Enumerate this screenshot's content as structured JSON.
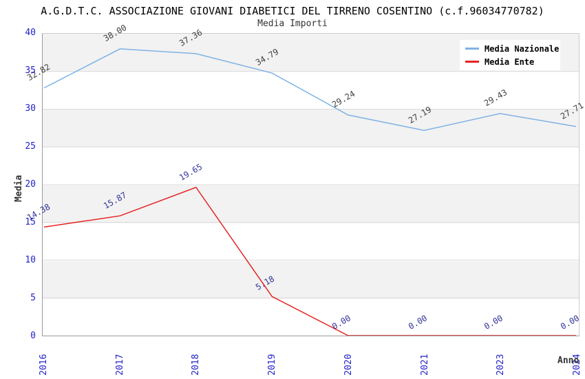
{
  "title": "A.G.D.T.C. ASSOCIAZIONE GIOVANI DIABETICI DEL TIRRENO COSENTINO (c.f.96034770782)",
  "subtitle": "Media Importi",
  "y_axis": {
    "label": "Media",
    "ticks": [
      "40",
      "35",
      "30",
      "25",
      "20",
      "15",
      "10",
      "5",
      "0"
    ]
  },
  "x_axis": {
    "label": "Anno",
    "ticks": [
      "2016",
      "2017",
      "2018",
      "2019",
      "2020",
      "2021",
      "2023",
      "2024"
    ]
  },
  "legend": {
    "items": [
      {
        "label": "Media Nazionale",
        "color": "#7fb2e5"
      },
      {
        "label": "Media Ente",
        "color": "#e62222"
      }
    ]
  },
  "chart_data": {
    "type": "line",
    "title": "Media Importi",
    "xlabel": "Anno",
    "ylabel": "Media",
    "ylim": [
      0,
      40
    ],
    "y_tick_step": 5,
    "grid": "horizontal-bands-alternating",
    "legend_position": "top-right",
    "categories": [
      "2016",
      "2017",
      "2018",
      "2019",
      "2020",
      "2021",
      "2023",
      "2024"
    ],
    "series": [
      {
        "name": "Media Nazionale",
        "color": "#7fb2e5",
        "label_color": "#404040",
        "values": [
          32.82,
          38.0,
          37.36,
          34.79,
          29.24,
          27.19,
          29.43,
          27.71
        ]
      },
      {
        "name": "Media Ente",
        "color": "#e62222",
        "label_color": "#333399",
        "values": [
          14.38,
          15.87,
          19.65,
          5.18,
          0.0,
          0.0,
          0.0,
          0.0
        ]
      }
    ]
  },
  "colors": {
    "tick": "#2222cc",
    "band": "#f2f2f2",
    "grid": "#d9d9d9",
    "plot_border": "#cccccc",
    "axis_line": "#999999",
    "title": "#000000",
    "subtitle": "#333333",
    "axis_title": "#333333",
    "legend_bg": "#ffffff"
  }
}
